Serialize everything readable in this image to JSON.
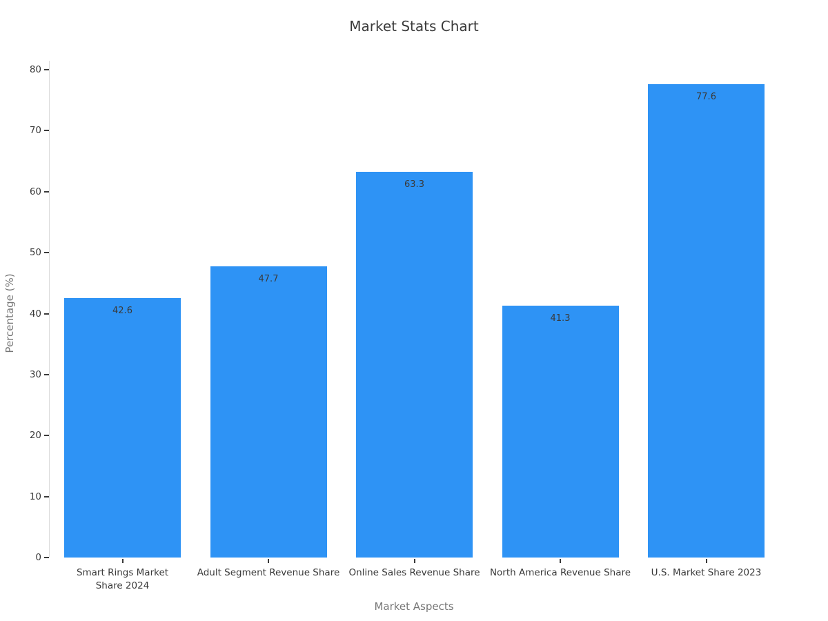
{
  "chart_data": {
    "type": "bar",
    "title": "Market Stats Chart",
    "xlabel": "Market Aspects",
    "ylabel": "Percentage (%)",
    "categories": [
      "Smart Rings Market Share 2024",
      "Adult Segment Revenue Share",
      "Online Sales Revenue Share",
      "North America Revenue Share",
      "U.S. Market Share 2023"
    ],
    "values": [
      42.6,
      47.7,
      63.3,
      41.3,
      77.6
    ],
    "value_labels": [
      "42.6",
      "47.7",
      "63.3",
      "41.3",
      "77.6"
    ],
    "ylim": [
      0,
      80
    ],
    "yticks": [
      0,
      10,
      20,
      30,
      40,
      50,
      60,
      70,
      80
    ],
    "grid": false,
    "legend": "none",
    "bar_color": "#2E93F5",
    "background": "#ffffff",
    "text_color": "#3a3a3a",
    "axis_title_color": "#767676",
    "axis_line_color": "#dcdcdc"
  }
}
